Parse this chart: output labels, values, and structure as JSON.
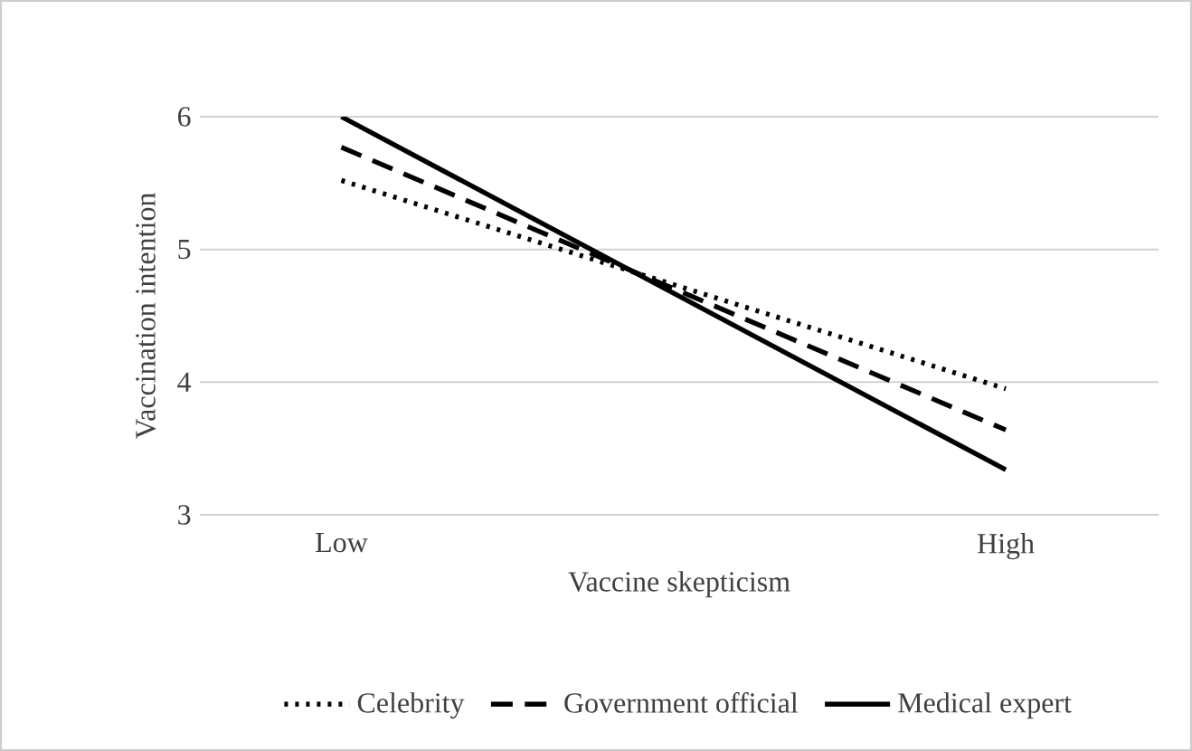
{
  "chart_data": {
    "type": "line",
    "xlabel": "Vaccine skepticism",
    "ylabel": "Vaccination intention",
    "categories": [
      "Low",
      "High"
    ],
    "series": [
      {
        "name": "Celebrity",
        "color": "#000000",
        "line_style": "dotted",
        "values": [
          5.52,
          3.95
        ]
      },
      {
        "name": "Government official",
        "color": "#000000",
        "line_style": "dashed",
        "values": [
          5.77,
          3.64
        ]
      },
      {
        "name": "Medical expert",
        "color": "#000000",
        "line_style": "solid",
        "values": [
          6.0,
          3.34
        ]
      }
    ],
    "ylim": [
      3,
      6
    ],
    "yticks": [
      3,
      4,
      5,
      6
    ],
    "grid": "y",
    "legend": "bottom",
    "marker": "none"
  }
}
